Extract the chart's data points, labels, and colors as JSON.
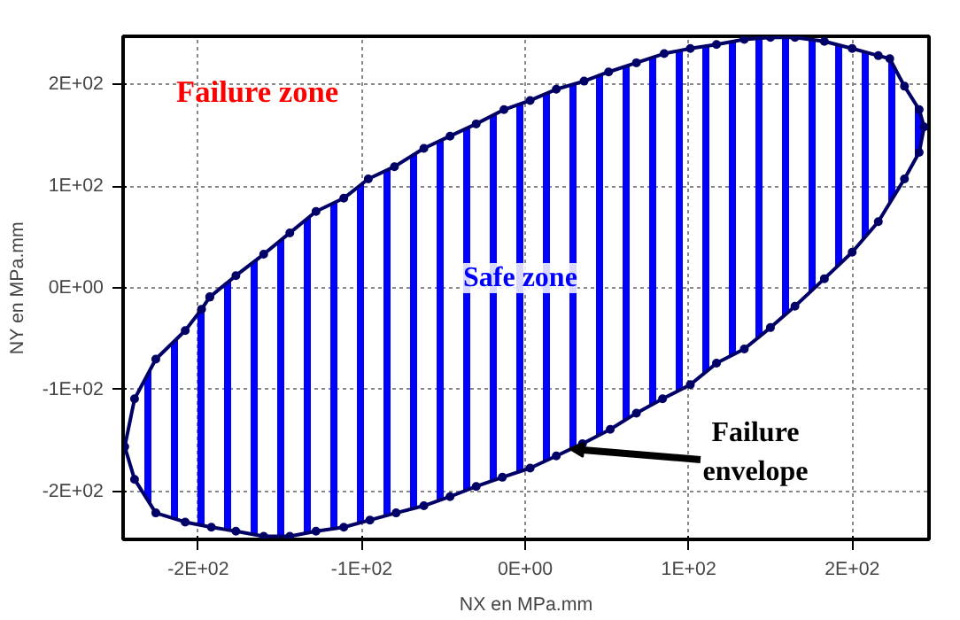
{
  "chart_data": {
    "type": "area",
    "xlabel": "NX en MPa.mm",
    "ylabel": "NY en MPa.mm",
    "xlim": [
      -246,
      247
    ],
    "ylim": [
      -247,
      247
    ],
    "xticks": [
      {
        "value": -200,
        "label": "-2E+02"
      },
      {
        "value": -100,
        "label": "-1E+02"
      },
      {
        "value": 0,
        "label": "0E+00"
      },
      {
        "value": 100,
        "label": "1E+02"
      },
      {
        "value": 200,
        "label": "2E+02"
      }
    ],
    "yticks": [
      {
        "value": -200,
        "label": "-2E+02"
      },
      {
        "value": -100,
        "label": "-1E+02"
      },
      {
        "value": 0,
        "label": "0E+00"
      },
      {
        "value": 100,
        "label": "1E+02"
      },
      {
        "value": 200,
        "label": "2E+02"
      }
    ],
    "grid": true,
    "marker": "circle",
    "line_style": "solid",
    "annotations": [
      "Failure zone",
      "Safe zone",
      {
        "text": "Failure envelope",
        "x": 27,
        "y": -158
      }
    ],
    "series": [
      {
        "color": "#0000ff",
        "x": [
          -193,
          -177,
          -160,
          -144,
          -128,
          -111,
          -96,
          -80,
          -62,
          -46,
          -30,
          -13,
          3,
          19,
          36,
          51,
          68,
          85,
          101,
          117,
          134,
          150,
          165,
          183,
          200,
          216,
          223,
          232,
          241,
          244,
          241,
          232,
          216,
          200,
          183,
          165,
          150,
          134,
          117,
          101,
          84,
          68,
          52,
          35,
          19,
          3,
          -14,
          -30,
          -46,
          -62,
          -79,
          -95,
          -111,
          -128,
          -144,
          -160,
          -177,
          -192,
          -208,
          -226,
          -239,
          -245,
          -239,
          -226,
          -208,
          -198,
          -193
        ],
        "values": [
          -9,
          12,
          33,
          54,
          75,
          88,
          107,
          119,
          137,
          149,
          161,
          175,
          184,
          195,
          203,
          212,
          221,
          230,
          235,
          239,
          244,
          246,
          246,
          242,
          235,
          228,
          225,
          198,
          175,
          158,
          133,
          107,
          65,
          35,
          9,
          -18,
          -39,
          -60,
          -74,
          -95,
          -109,
          -123,
          -139,
          -153,
          -165,
          -177,
          -186,
          -195,
          -205,
          -214,
          -221,
          -228,
          -235,
          -239,
          -244,
          -244,
          -239,
          -235,
          -230,
          -221,
          -188,
          -156,
          -109,
          -70,
          -42,
          -21,
          -9
        ]
      }
    ]
  }
}
